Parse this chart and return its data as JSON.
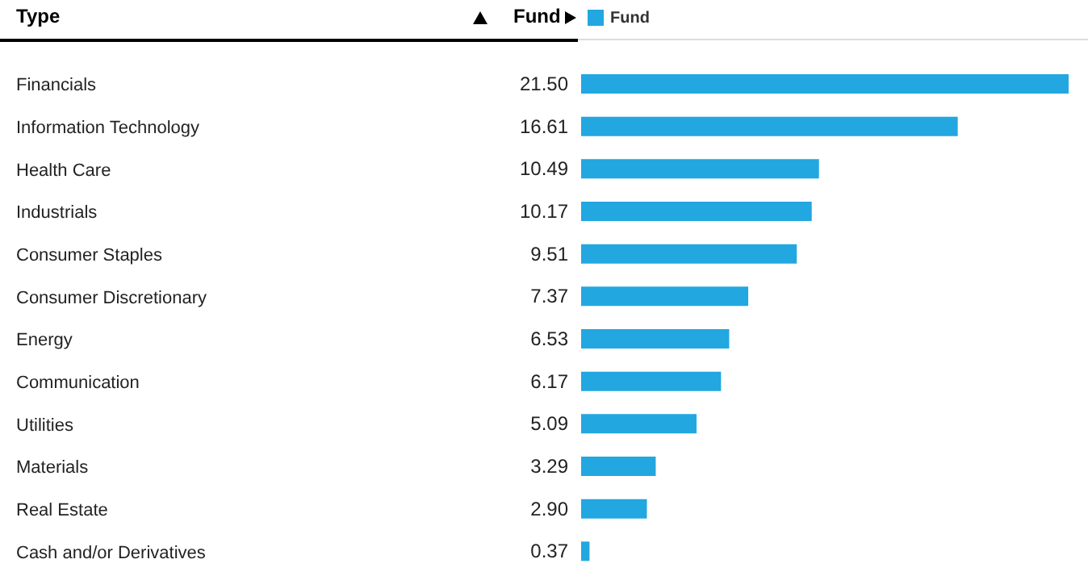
{
  "chart_data": {
    "type": "bar",
    "orientation": "horizontal",
    "ylabel": "Type",
    "categories": [
      "Financials",
      "Information Technology",
      "Health Care",
      "Industrials",
      "Consumer Staples",
      "Consumer Discretionary",
      "Energy",
      "Communication",
      "Utilities",
      "Materials",
      "Real Estate",
      "Cash and/or Derivatives"
    ],
    "series": [
      {
        "name": "Fund",
        "color": "#22a7e0",
        "values": [
          21.5,
          16.61,
          10.49,
          10.17,
          9.51,
          7.37,
          6.53,
          6.17,
          5.09,
          3.29,
          2.9,
          0.37
        ],
        "value_labels": [
          "21.50",
          "16.61",
          "10.49",
          "10.17",
          "9.51",
          "7.37",
          "6.53",
          "6.17",
          "5.09",
          "3.29",
          "2.90",
          "0.37"
        ]
      }
    ],
    "legend": "top left"
  }
}
